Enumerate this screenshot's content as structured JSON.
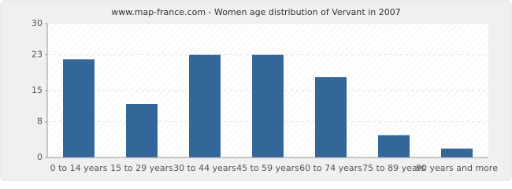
{
  "chart_data": {
    "type": "bar",
    "title": "www.map-france.com - Women age distribution of Vervant in 2007",
    "categories": [
      "0 to 14 years",
      "15 to 29 years",
      "30 to 44 years",
      "45 to 59 years",
      "60 to 74 years",
      "75 to 89 years",
      "90 years and more"
    ],
    "values": [
      22,
      12,
      23,
      23,
      18,
      5,
      2
    ],
    "color": "#336699",
    "ylim": [
      0,
      30
    ],
    "yticks": [
      0,
      8,
      15,
      23,
      30
    ],
    "grid": true
  }
}
